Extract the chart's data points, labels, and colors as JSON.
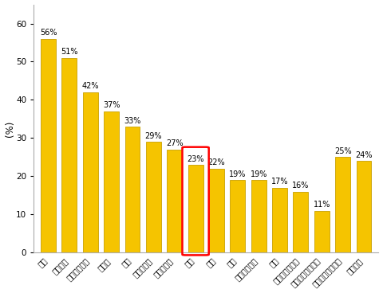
{
  "categories": [
    "タイ",
    "ベトナム",
    "インドネシア",
    "インド",
    "台湾",
    "フィリピン",
    "マレーシア",
    "日本",
    "香港",
    "中国",
    "シンガポール",
    "韓国",
    "オーストラリア",
    "ニュージーランド",
    "アジア太平洋地域",
    "世界平均"
  ],
  "values": [
    56,
    51,
    42,
    37,
    33,
    29,
    27,
    23,
    22,
    19,
    19,
    17,
    16,
    11,
    25,
    24
  ],
  "bar_color": "#F5C400",
  "bar_edge_color": "#C8A000",
  "highlight_index": 7,
  "highlight_color": "red",
  "ylabel": "(%)",
  "ylim": [
    0,
    65
  ],
  "yticks": [
    0,
    10,
    20,
    30,
    40,
    50,
    60
  ],
  "background_color": "#ffffff",
  "label_fontsize": 7.0,
  "value_fontsize": 7.0,
  "bar_width": 0.72
}
